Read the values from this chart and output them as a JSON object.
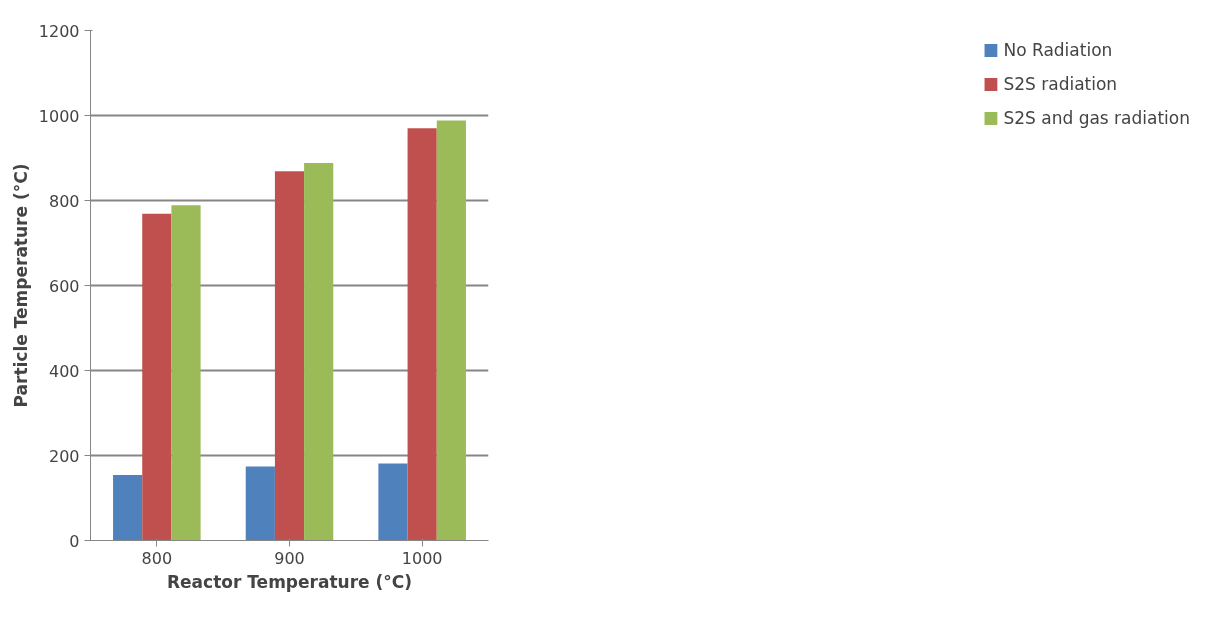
{
  "chart_data": {
    "type": "bar",
    "xlabel": "Reactor Temperature (°C)",
    "ylabel": "Particle Temperature (°C)",
    "categories": [
      "800",
      "900",
      "1000"
    ],
    "series": [
      {
        "name": "No Radiation",
        "color": "#4f81bd",
        "values": [
          154,
          174,
          181
        ]
      },
      {
        "name": "S2S radiation",
        "color": "#c0504d",
        "values": [
          769,
          869,
          970
        ]
      },
      {
        "name": "S2S and gas radiation",
        "color": "#9bbb59",
        "values": [
          789,
          888,
          988
        ]
      }
    ],
    "ylim": [
      0,
      1200
    ],
    "yticks": [
      0,
      200,
      400,
      600,
      800,
      1000,
      1200
    ],
    "grid": "y",
    "legend": "right"
  }
}
